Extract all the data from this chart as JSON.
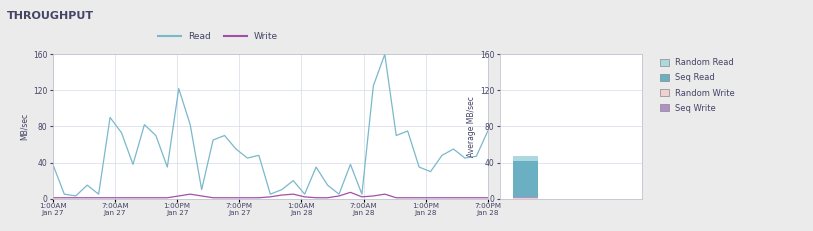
{
  "title": "THROUGHPUT",
  "title_bg": "#e8e8e8",
  "bg_color": "#ebebeb",
  "plot_bg": "#ffffff",
  "line_color_read": "#7ab8cc",
  "line_color_write": "#a050a8",
  "ylabel_left": "MB/sec",
  "ylabel_right": "Average MB/sec",
  "ylim": [
    0,
    160
  ],
  "yticks": [
    0,
    40,
    80,
    120,
    160
  ],
  "xtick_labels": [
    "1:00AM\nJan 27",
    "7:00AM\nJan 27",
    "1:00PM\nJan 27",
    "7:00PM\nJan 27",
    "1:00AM\nJan 28",
    "7:00AM\nJan 28",
    "1:00PM\nJan 28",
    "7:00PM\nJan 28"
  ],
  "read_values": [
    38,
    5,
    3,
    15,
    5,
    90,
    73,
    38,
    82,
    70,
    35,
    122,
    82,
    10,
    65,
    70,
    55,
    45,
    48,
    5,
    10,
    20,
    5,
    35,
    15,
    5,
    38,
    5,
    125,
    160,
    70,
    75,
    35,
    30,
    48,
    55,
    45,
    47,
    75
  ],
  "write_values": [
    1,
    1,
    1,
    1,
    1,
    1,
    1,
    1,
    1,
    1,
    1,
    3,
    5,
    3,
    1,
    1,
    1,
    1,
    1,
    2,
    4,
    5,
    2,
    1,
    1,
    3,
    7,
    2,
    3,
    5,
    1,
    1,
    1,
    1,
    1,
    1,
    1,
    1,
    1
  ],
  "bar_seq_read_color": "#6bafc3",
  "bar_rand_read_color": "#aed8e0",
  "bar_seq_write_color": "#b090c8",
  "bar_rand_write_color": "#f0d0d0",
  "bar_seq_read_val": 42,
  "bar_rand_read_val": 5,
  "bar_seq_write_val": 1,
  "bar_rand_write_val": 0.5,
  "legend_left_labels": [
    "Read",
    "Write"
  ],
  "legend_right_labels": [
    "Random Read",
    "Seq Read",
    "Random Write",
    "Seq Write"
  ],
  "legend_right_colors": [
    "#aed8e0",
    "#6bafc3",
    "#f0d0d0",
    "#b090c8"
  ],
  "grid_color": "#d5dce8",
  "text_color": "#444466"
}
